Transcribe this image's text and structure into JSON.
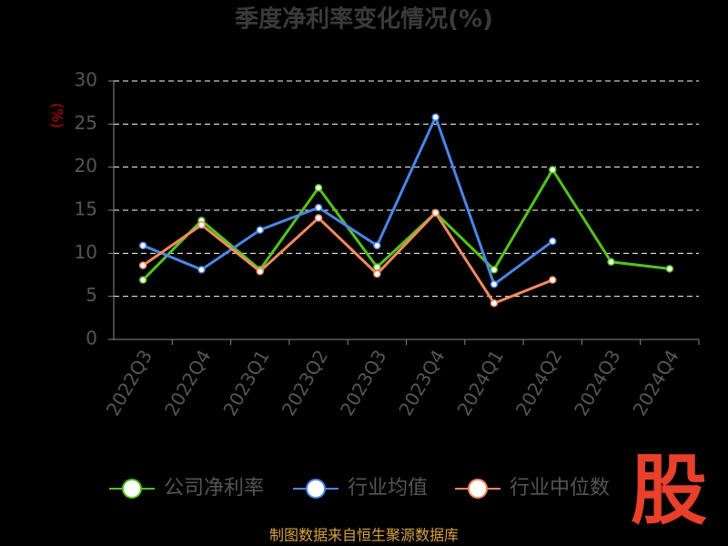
{
  "chart_data": {
    "type": "line",
    "title": "季度净利率变化情况(%)",
    "y_label": "(%)",
    "categories": [
      "2022Q3",
      "2022Q4",
      "2023Q1",
      "2023Q2",
      "2023Q3",
      "2023Q4",
      "2024Q1",
      "2024Q2",
      "2024Q3",
      "2024Q4"
    ],
    "series": [
      {
        "name": "公司净利率",
        "color": "#52c41a",
        "values": [
          6.9,
          13.8,
          8.1,
          17.6,
          8.4,
          14.7,
          8.1,
          19.7,
          9.0,
          8.2
        ]
      },
      {
        "name": "行业均值",
        "color": "#4a86e8",
        "values": [
          10.9,
          8.1,
          12.7,
          15.3,
          10.9,
          25.8,
          6.4,
          11.4,
          null,
          null
        ]
      },
      {
        "name": "行业中位数",
        "color": "#f4895f",
        "values": [
          8.6,
          13.3,
          7.9,
          14.1,
          7.6,
          14.7,
          4.2,
          6.9,
          null,
          null
        ]
      }
    ],
    "ylim": [
      0,
      30
    ],
    "yticks": [
      0,
      5,
      10,
      15,
      20,
      25,
      30
    ],
    "grid": true,
    "source": "制图数据来自恒生聚源数据库",
    "logo": "股"
  }
}
